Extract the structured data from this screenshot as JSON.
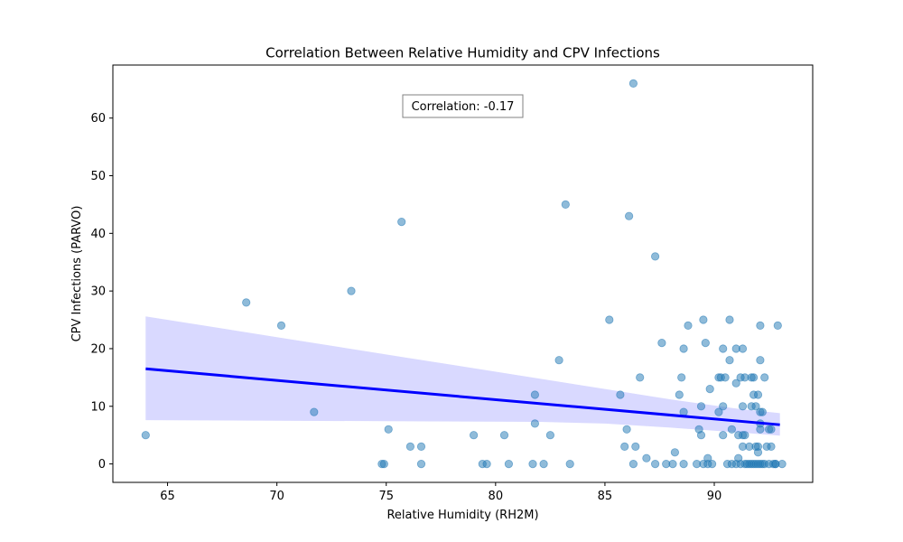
{
  "chart_data": {
    "type": "scatter",
    "title": "Correlation Between Relative Humidity and CPV Infections",
    "xlabel": "Relative Humidity (RH2M)",
    "ylabel": "CPV Infections (PARVO)",
    "xlim": [
      62.5,
      94.5
    ],
    "ylim": [
      -3.2,
      69.2
    ],
    "xticks": [
      65,
      70,
      75,
      80,
      85,
      90
    ],
    "yticks": [
      0,
      10,
      20,
      30,
      40,
      50,
      60
    ],
    "grid": false,
    "annotation": "Correlation: -0.17",
    "colors": {
      "points": "#1f77b4",
      "regression_line": "#0000ff",
      "confidence_band": "#d9d9ff"
    },
    "regression": {
      "x": [
        64.0,
        93.0
      ],
      "y": [
        16.5,
        6.8
      ]
    },
    "confidence_band": {
      "x": [
        64.0,
        70.0,
        76.0,
        82.0,
        85.0,
        88.0,
        91.0,
        93.0
      ],
      "lower": [
        7.6,
        7.5,
        7.4,
        7.3,
        7.0,
        6.3,
        5.5,
        4.9
      ],
      "upper": [
        25.6,
        22.0,
        18.4,
        14.8,
        13.0,
        11.2,
        9.6,
        8.8
      ]
    },
    "points": [
      [
        64.0,
        5
      ],
      [
        68.6,
        28
      ],
      [
        70.2,
        24
      ],
      [
        71.7,
        9
      ],
      [
        73.4,
        30
      ],
      [
        74.8,
        0
      ],
      [
        74.9,
        0
      ],
      [
        75.1,
        6
      ],
      [
        75.7,
        42
      ],
      [
        76.1,
        3
      ],
      [
        76.6,
        3
      ],
      [
        76.6,
        0
      ],
      [
        79.0,
        5
      ],
      [
        79.4,
        0
      ],
      [
        79.6,
        0
      ],
      [
        80.4,
        5
      ],
      [
        80.6,
        0
      ],
      [
        81.7,
        0
      ],
      [
        81.8,
        12
      ],
      [
        81.8,
        7
      ],
      [
        82.2,
        0
      ],
      [
        82.5,
        5
      ],
      [
        82.9,
        18
      ],
      [
        83.2,
        45
      ],
      [
        83.4,
        0
      ],
      [
        85.2,
        25
      ],
      [
        85.7,
        12
      ],
      [
        85.9,
        3
      ],
      [
        86.0,
        6
      ],
      [
        86.1,
        43
      ],
      [
        86.3,
        0
      ],
      [
        86.3,
        66
      ],
      [
        86.4,
        3
      ],
      [
        86.6,
        15
      ],
      [
        86.9,
        1
      ],
      [
        87.3,
        36
      ],
      [
        87.3,
        0
      ],
      [
        87.6,
        21
      ],
      [
        87.8,
        0
      ],
      [
        88.1,
        0
      ],
      [
        88.2,
        2
      ],
      [
        88.4,
        12
      ],
      [
        88.5,
        15
      ],
      [
        88.6,
        20
      ],
      [
        88.6,
        9
      ],
      [
        88.6,
        0
      ],
      [
        88.8,
        24
      ],
      [
        89.2,
        0
      ],
      [
        89.3,
        6
      ],
      [
        89.4,
        5
      ],
      [
        89.4,
        10
      ],
      [
        89.5,
        25
      ],
      [
        89.5,
        0
      ],
      [
        89.6,
        21
      ],
      [
        89.7,
        1
      ],
      [
        89.7,
        0
      ],
      [
        89.8,
        13
      ],
      [
        89.9,
        0
      ],
      [
        90.2,
        15
      ],
      [
        90.2,
        9
      ],
      [
        90.3,
        15
      ],
      [
        90.4,
        20
      ],
      [
        90.4,
        5
      ],
      [
        90.4,
        10
      ],
      [
        90.5,
        15
      ],
      [
        90.6,
        0
      ],
      [
        90.7,
        25
      ],
      [
        90.7,
        18
      ],
      [
        90.8,
        6
      ],
      [
        90.8,
        0
      ],
      [
        91.0,
        14
      ],
      [
        91.0,
        20
      ],
      [
        91.0,
        0
      ],
      [
        91.1,
        5
      ],
      [
        91.1,
        1
      ],
      [
        91.2,
        15
      ],
      [
        91.2,
        0
      ],
      [
        91.3,
        10
      ],
      [
        91.3,
        20
      ],
      [
        91.3,
        5
      ],
      [
        91.3,
        3
      ],
      [
        91.4,
        15
      ],
      [
        91.4,
        5
      ],
      [
        91.4,
        0
      ],
      [
        91.5,
        0
      ],
      [
        91.6,
        0
      ],
      [
        91.6,
        3
      ],
      [
        91.7,
        10
      ],
      [
        91.7,
        15
      ],
      [
        91.7,
        0
      ],
      [
        91.8,
        12
      ],
      [
        91.8,
        15
      ],
      [
        91.8,
        0
      ],
      [
        91.9,
        10
      ],
      [
        91.9,
        3
      ],
      [
        91.9,
        0
      ],
      [
        92.0,
        12
      ],
      [
        92.0,
        3
      ],
      [
        92.0,
        0
      ],
      [
        92.0,
        2
      ],
      [
        92.1,
        0
      ],
      [
        92.1,
        7
      ],
      [
        92.1,
        6
      ],
      [
        92.1,
        9
      ],
      [
        92.1,
        18
      ],
      [
        92.1,
        24
      ],
      [
        92.2,
        9
      ],
      [
        92.2,
        0
      ],
      [
        92.3,
        0
      ],
      [
        92.3,
        15
      ],
      [
        92.4,
        3
      ],
      [
        92.5,
        6
      ],
      [
        92.5,
        0
      ],
      [
        92.6,
        3
      ],
      [
        92.6,
        6
      ],
      [
        92.7,
        0
      ],
      [
        92.8,
        0
      ],
      [
        92.8,
        0
      ],
      [
        92.9,
        24
      ],
      [
        93.1,
        0
      ]
    ]
  }
}
